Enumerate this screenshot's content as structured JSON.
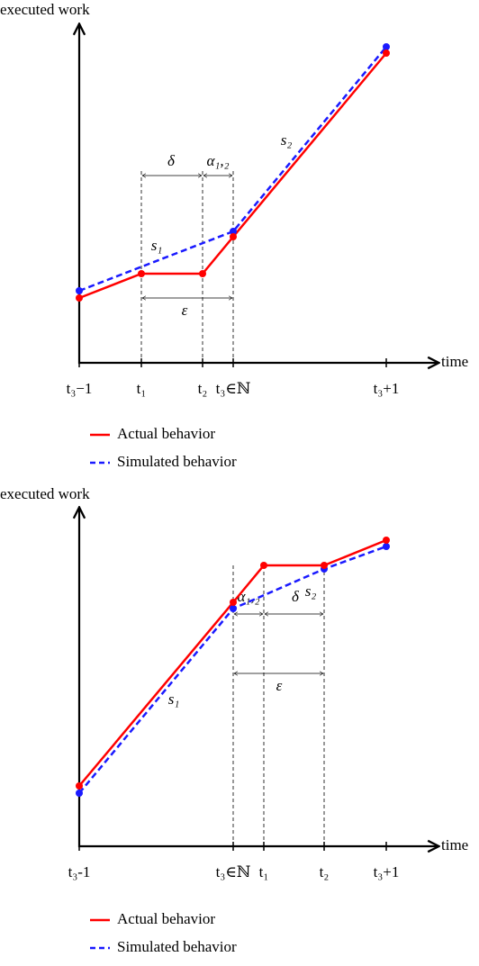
{
  "panels": [
    {
      "y_axis_label": "executed work",
      "x_axis_label": "time",
      "x_ticks": [
        "t₃−1",
        "t₁",
        "t₂",
        "t₃∈ℕ",
        "t₃+1"
      ],
      "annotations": {
        "delta": "δ",
        "alpha": "α₁,₂",
        "epsilon": "ε",
        "s1": "s₁",
        "s2": "s₂"
      },
      "legend": [
        "Actual behavior",
        "Simulated behavior"
      ]
    },
    {
      "y_axis_label": "executed work",
      "x_axis_label": "time",
      "x_ticks": [
        "t₃-1",
        "t₃∈ℕ",
        "t₁",
        "t₂",
        "t₃+1"
      ],
      "annotations": {
        "alpha": "α₁,₂",
        "delta": "δ",
        "epsilon": "ε",
        "s1": "s₁",
        "s2": "s₂"
      },
      "legend": [
        "Actual behavior",
        "Simulated behavior"
      ]
    }
  ]
}
